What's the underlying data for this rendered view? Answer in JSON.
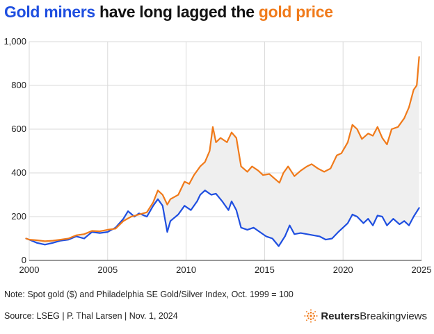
{
  "title": {
    "part1": "Gold miners",
    "part2": " have long lagged the ",
    "part3": "gold price"
  },
  "note": "Note: Spot gold ($) and Philadelphia SE Gold/Silver Index, Oct. 1999 = 100",
  "source": "Source: LSEG | P. Thal Larsen | Nov. 1, 2024",
  "brand": {
    "name_bold": "Reuters",
    "name_regular": "Breakingviews",
    "icon": "reuters-logo-icon"
  },
  "colors": {
    "gold": "#f07a1a",
    "miners": "#1f4fe0",
    "gap_fill": "#efefef",
    "grid": "#d9d9d9"
  },
  "chart_data": {
    "type": "line",
    "xlim": [
      2000,
      2025
    ],
    "ylim": [
      0,
      1000
    ],
    "x_ticks": [
      "2000",
      "2005",
      "2010",
      "2015",
      "2020",
      "2025"
    ],
    "y_ticks": [
      "0",
      "200",
      "400",
      "600",
      "800",
      "1,000"
    ],
    "grid": true,
    "shaded_between_series": true,
    "series": [
      {
        "name": "gold price",
        "color": "#f07a1a",
        "points": [
          [
            1999.8,
            100
          ],
          [
            2000.0,
            95
          ],
          [
            2000.5,
            92
          ],
          [
            2001.0,
            88
          ],
          [
            2001.5,
            90
          ],
          [
            2002.0,
            95
          ],
          [
            2002.5,
            100
          ],
          [
            2003.0,
            115
          ],
          [
            2003.5,
            120
          ],
          [
            2004.0,
            135
          ],
          [
            2004.5,
            133
          ],
          [
            2005.0,
            140
          ],
          [
            2005.5,
            145
          ],
          [
            2006.0,
            180
          ],
          [
            2006.5,
            200
          ],
          [
            2007.0,
            210
          ],
          [
            2007.5,
            220
          ],
          [
            2007.9,
            265
          ],
          [
            2008.2,
            320
          ],
          [
            2008.5,
            300
          ],
          [
            2008.8,
            255
          ],
          [
            2009.0,
            280
          ],
          [
            2009.5,
            300
          ],
          [
            2009.9,
            360
          ],
          [
            2010.2,
            350
          ],
          [
            2010.5,
            390
          ],
          [
            2010.9,
            430
          ],
          [
            2011.2,
            450
          ],
          [
            2011.5,
            500
          ],
          [
            2011.7,
            610
          ],
          [
            2011.9,
            540
          ],
          [
            2012.2,
            560
          ],
          [
            2012.6,
            540
          ],
          [
            2012.9,
            585
          ],
          [
            2013.2,
            560
          ],
          [
            2013.5,
            430
          ],
          [
            2013.9,
            405
          ],
          [
            2014.2,
            430
          ],
          [
            2014.6,
            410
          ],
          [
            2014.9,
            390
          ],
          [
            2015.3,
            395
          ],
          [
            2015.7,
            370
          ],
          [
            2015.95,
            355
          ],
          [
            2016.2,
            400
          ],
          [
            2016.5,
            430
          ],
          [
            2016.9,
            385
          ],
          [
            2017.3,
            410
          ],
          [
            2017.7,
            430
          ],
          [
            2018.0,
            440
          ],
          [
            2018.4,
            420
          ],
          [
            2018.8,
            405
          ],
          [
            2019.2,
            420
          ],
          [
            2019.6,
            480
          ],
          [
            2019.9,
            490
          ],
          [
            2020.3,
            540
          ],
          [
            2020.6,
            620
          ],
          [
            2020.9,
            600
          ],
          [
            2021.2,
            555
          ],
          [
            2021.6,
            580
          ],
          [
            2021.9,
            570
          ],
          [
            2022.2,
            610
          ],
          [
            2022.5,
            560
          ],
          [
            2022.8,
            530
          ],
          [
            2023.1,
            600
          ],
          [
            2023.5,
            610
          ],
          [
            2023.9,
            650
          ],
          [
            2024.2,
            700
          ],
          [
            2024.5,
            780
          ],
          [
            2024.7,
            800
          ],
          [
            2024.85,
            930
          ]
        ]
      },
      {
        "name": "Gold miners",
        "color": "#1f4fe0",
        "points": [
          [
            1999.8,
            100
          ],
          [
            2000.0,
            95
          ],
          [
            2000.5,
            80
          ],
          [
            2001.0,
            72
          ],
          [
            2001.5,
            80
          ],
          [
            2002.0,
            90
          ],
          [
            2002.5,
            95
          ],
          [
            2003.0,
            110
          ],
          [
            2003.5,
            100
          ],
          [
            2004.0,
            130
          ],
          [
            2004.5,
            125
          ],
          [
            2005.0,
            130
          ],
          [
            2005.5,
            150
          ],
          [
            2006.0,
            190
          ],
          [
            2006.3,
            225
          ],
          [
            2006.7,
            200
          ],
          [
            2007.0,
            215
          ],
          [
            2007.5,
            200
          ],
          [
            2007.9,
            250
          ],
          [
            2008.2,
            280
          ],
          [
            2008.5,
            250
          ],
          [
            2008.8,
            130
          ],
          [
            2009.0,
            180
          ],
          [
            2009.5,
            210
          ],
          [
            2009.9,
            250
          ],
          [
            2010.3,
            230
          ],
          [
            2010.7,
            270
          ],
          [
            2010.9,
            300
          ],
          [
            2011.2,
            320
          ],
          [
            2011.6,
            300
          ],
          [
            2011.9,
            305
          ],
          [
            2012.3,
            270
          ],
          [
            2012.7,
            230
          ],
          [
            2012.9,
            270
          ],
          [
            2013.2,
            230
          ],
          [
            2013.5,
            150
          ],
          [
            2013.9,
            140
          ],
          [
            2014.3,
            150
          ],
          [
            2014.7,
            130
          ],
          [
            2015.1,
            110
          ],
          [
            2015.5,
            100
          ],
          [
            2015.9,
            65
          ],
          [
            2016.3,
            110
          ],
          [
            2016.6,
            160
          ],
          [
            2016.9,
            120
          ],
          [
            2017.3,
            125
          ],
          [
            2017.7,
            120
          ],
          [
            2018.1,
            115
          ],
          [
            2018.5,
            110
          ],
          [
            2018.9,
            95
          ],
          [
            2019.3,
            100
          ],
          [
            2019.7,
            130
          ],
          [
            2020.0,
            150
          ],
          [
            2020.3,
            170
          ],
          [
            2020.6,
            210
          ],
          [
            2020.9,
            200
          ],
          [
            2021.3,
            170
          ],
          [
            2021.6,
            190
          ],
          [
            2021.9,
            160
          ],
          [
            2022.2,
            205
          ],
          [
            2022.5,
            200
          ],
          [
            2022.8,
            160
          ],
          [
            2023.2,
            190
          ],
          [
            2023.6,
            165
          ],
          [
            2023.9,
            180
          ],
          [
            2024.2,
            160
          ],
          [
            2024.5,
            200
          ],
          [
            2024.85,
            240
          ]
        ]
      }
    ]
  }
}
